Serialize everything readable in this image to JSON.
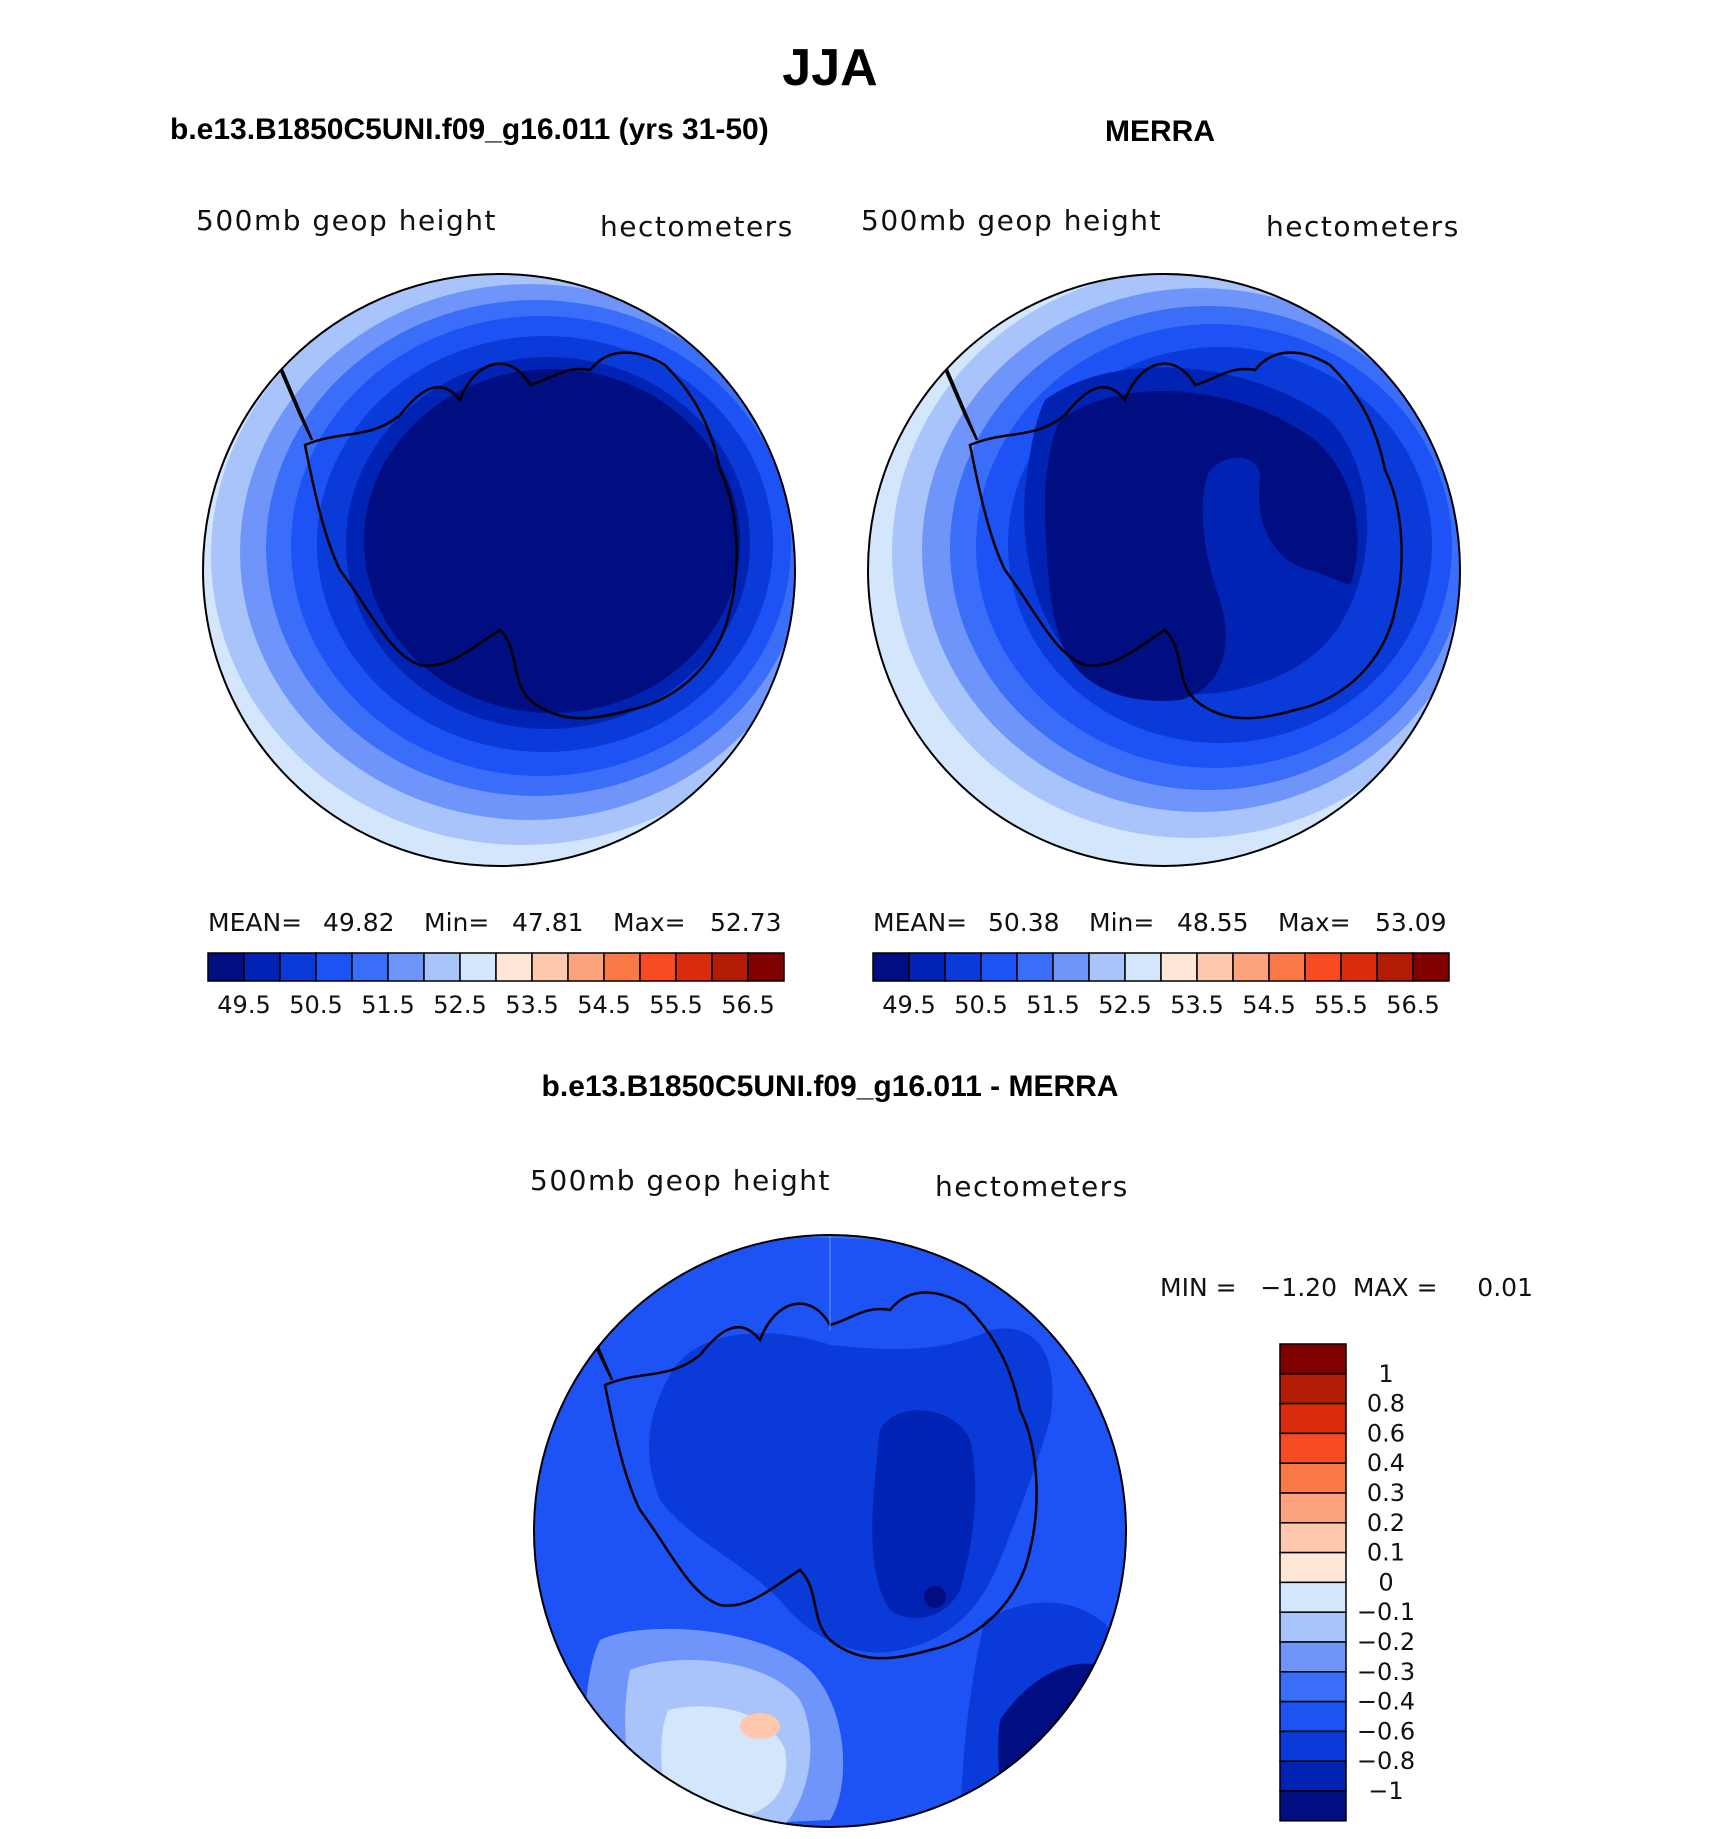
{
  "title": "JJA",
  "colors": {
    "levels": [
      "#000e82",
      "#0023b3",
      "#0a3ad8",
      "#1d52f5",
      "#3a6ef8",
      "#6f95fb",
      "#a9c3fb",
      "#d3e6fb",
      "#fee7d6",
      "#fdc8ad",
      "#fca27c",
      "#fb7947",
      "#f74b22",
      "#d92c0c",
      "#b21c05",
      "#800000"
    ],
    "diff": [
      "#000e82",
      "#0023b3",
      "#0a3ad8",
      "#1d52f5",
      "#3a6ef8",
      "#6f95fb",
      "#a9c3fb",
      "#d3e6fb",
      "#fee7d6",
      "#fdc8ad",
      "#fca27c",
      "#fb7947",
      "#f74b22",
      "#d92c0c",
      "#b21c05",
      "#800000"
    ]
  },
  "panels": {
    "model": {
      "heading": "b.e13.B1850C5UNI.f09_g16.011 (yrs 31-50)",
      "var_label": "500mb geop height",
      "units": "hectometers",
      "stats": {
        "mean_label": "MEAN=",
        "mean": "49.82",
        "min_label": "Min=",
        "min": "47.81",
        "max_label": "Max=",
        "max": "52.73"
      },
      "ticks": [
        "49.5",
        "50.5",
        "51.5",
        "52.5",
        "53.5",
        "54.5",
        "55.5",
        "56.5"
      ]
    },
    "obs": {
      "heading": "MERRA",
      "var_label": "500mb geop height",
      "units": "hectometers",
      "stats": {
        "mean_label": "MEAN=",
        "mean": "50.38",
        "min_label": "Min=",
        "min": "48.55",
        "max_label": "Max=",
        "max": "53.09"
      },
      "ticks": [
        "49.5",
        "50.5",
        "51.5",
        "52.5",
        "53.5",
        "54.5",
        "55.5",
        "56.5"
      ]
    },
    "diff": {
      "heading": "b.e13.B1850C5UNI.f09_g16.011 - MERRA",
      "var_label": "500mb geop height",
      "units": "hectometers",
      "minmax_text": "MIN =   −1.20  MAX =     0.01",
      "ticks": [
        "1",
        "0.8",
        "0.6",
        "0.4",
        "0.3",
        "0.2",
        "0.1",
        "0",
        "−0.1",
        "−0.2",
        "−0.3",
        "−0.4",
        "−0.6",
        "−0.8",
        "−1"
      ]
    }
  }
}
